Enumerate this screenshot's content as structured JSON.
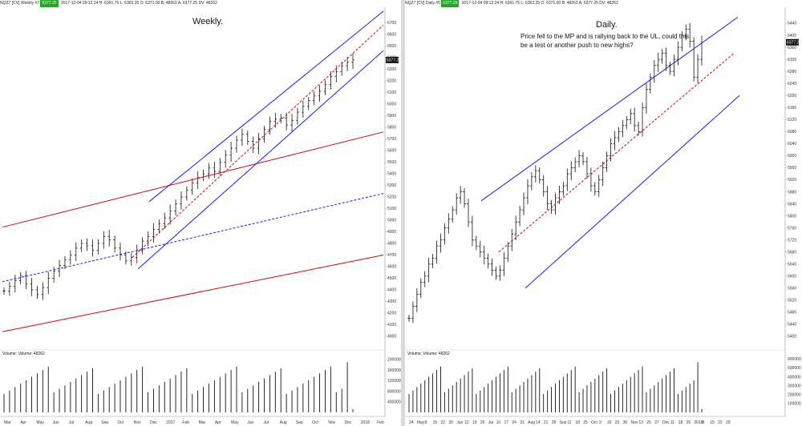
{
  "left_pane": {
    "header_symbol": "NQZ7 [CV]  Weekly  #7",
    "header_badge": "6377.25",
    "header_text": "2017-12-04 09:12:24  H: 6391.75  L: 6363.25  O: 6371.00  B: 48262  A: 6377.25  DV: 48262",
    "title": "Weekly.",
    "price_tag": "6377.25",
    "volume_label": "Volume: Volume: 48262"
  },
  "right_pane": {
    "header_symbol": "NQZ7 [CV]  Daily  #5",
    "header_badge": "6377.25",
    "header_text": "2017-12-04 09:12:24  H: 6391.75  L: 6363.25  O: 6371.00  B: 48262  A: 6377.25  DV: 48262",
    "title": "Daily.",
    "note_line1": "Price fell to the MP and is rallying back to the UL, could this",
    "note_line2": "be a test or another push to new highs?",
    "price_tag": "6377.25",
    "volume_label": "Volume: Volume: 48262"
  },
  "chart_data": [
    {
      "type": "ohlc",
      "title": "Weekly.",
      "timeframe": "Weekly",
      "ylim": [
        4000,
        6800
      ],
      "y_ticks": [
        4000,
        4100,
        4200,
        4300,
        4400,
        4500,
        4600,
        4700,
        4800,
        4900,
        5000,
        5100,
        5200,
        5300,
        5400,
        5500,
        5600,
        5700,
        5800,
        5900,
        6000,
        6100,
        6200,
        6300,
        6400,
        6500,
        6600,
        6700
      ],
      "volume_ticks": [
        "400000",
        "800000",
        "1200000",
        "1600000",
        "2000000"
      ],
      "x_labels": [
        "Mar",
        "Apr",
        "May",
        "Jun",
        "Jul",
        "Aug",
        "Sep",
        "Oct",
        "Nov",
        "Dec",
        "2017",
        "Feb",
        "Mar",
        "Apr",
        "May",
        "Jun",
        "Jul",
        "Aug",
        "Sep",
        "Oct",
        "Nov",
        "Dec",
        "2018",
        "Feb"
      ],
      "close_series": [
        4390,
        4430,
        4480,
        4520,
        4450,
        4400,
        4360,
        4420,
        4500,
        4560,
        4610,
        4660,
        4700,
        4760,
        4800,
        4780,
        4740,
        4800,
        4860,
        4830,
        4760,
        4700,
        4650,
        4680,
        4740,
        4820,
        4860,
        4920,
        4970,
        5020,
        5080,
        5140,
        5200,
        5260,
        5320,
        5370,
        5400,
        5450,
        5420,
        5500,
        5560,
        5620,
        5690,
        5740,
        5680,
        5620,
        5700,
        5780,
        5850,
        5870,
        5880,
        5820,
        5860,
        5930,
        5980,
        6030,
        6070,
        6110,
        6170,
        6240,
        6280,
        6330,
        6360,
        6380
      ],
      "channels": [
        {
          "color": "#1a1aff",
          "style": "solid",
          "role": "upper"
        },
        {
          "color": "#1a1aff",
          "style": "solid",
          "role": "lower"
        },
        {
          "color": "#e00000",
          "style": "dashed",
          "role": "midpoint"
        },
        {
          "color": "#e00000",
          "style": "solid",
          "role": "long-term upper"
        },
        {
          "color": "#e00000",
          "style": "solid",
          "role": "long-term lower"
        },
        {
          "color": "#1a1aff",
          "style": "dashed",
          "role": "long-term midpoint"
        }
      ]
    },
    {
      "type": "ohlc",
      "title": "Daily.",
      "timeframe": "Daily",
      "ylim": [
        5400,
        6480
      ],
      "y_ticks": [
        5400,
        5440,
        5480,
        5520,
        5560,
        5600,
        5640,
        5680,
        5720,
        5760,
        5800,
        5840,
        5880,
        5920,
        5960,
        6000,
        6040,
        6080,
        6120,
        6160,
        6200,
        6240,
        6280,
        6320,
        6360,
        6400,
        6440
      ],
      "volume_ticks": [
        "100000",
        "200000",
        "300000",
        "400000",
        "500000",
        "600000"
      ],
      "x_labels": [
        "24",
        "May",
        "8",
        "15",
        "22",
        "30",
        "Jun",
        "12",
        "19",
        "26",
        "Jul",
        "10",
        "17",
        "24",
        "31",
        "Aug",
        "14",
        "21",
        "28",
        "Sep",
        "11",
        "18",
        "25",
        "Oct",
        "9",
        "16",
        "23",
        "30",
        "Nov",
        "13",
        "20",
        "27",
        "Dec",
        "11",
        "18",
        "26",
        "2018",
        "8",
        "15",
        "22",
        "29"
      ],
      "close_series": [
        5460,
        5500,
        5540,
        5580,
        5600,
        5640,
        5660,
        5700,
        5720,
        5760,
        5790,
        5820,
        5860,
        5880,
        5840,
        5780,
        5720,
        5700,
        5680,
        5660,
        5640,
        5620,
        5600,
        5620,
        5660,
        5700,
        5740,
        5780,
        5820,
        5860,
        5900,
        5930,
        5950,
        5920,
        5880,
        5840,
        5820,
        5860,
        5880,
        5900,
        5940,
        5960,
        5980,
        6000,
        5980,
        5940,
        5900,
        5880,
        5920,
        5960,
        6000,
        6040,
        6060,
        6080,
        6100,
        6120,
        6140,
        6100,
        6080,
        6160,
        6220,
        6260,
        6300,
        6320,
        6340,
        6300,
        6280,
        6320,
        6360,
        6400,
        6420,
        6380,
        6260,
        6320,
        6377
      ],
      "channels": [
        {
          "color": "#1a1aff",
          "style": "solid",
          "role": "upper"
        },
        {
          "color": "#1a1aff",
          "style": "solid",
          "role": "lower"
        },
        {
          "color": "#e00000",
          "style": "dashed",
          "role": "midpoint"
        }
      ]
    }
  ]
}
